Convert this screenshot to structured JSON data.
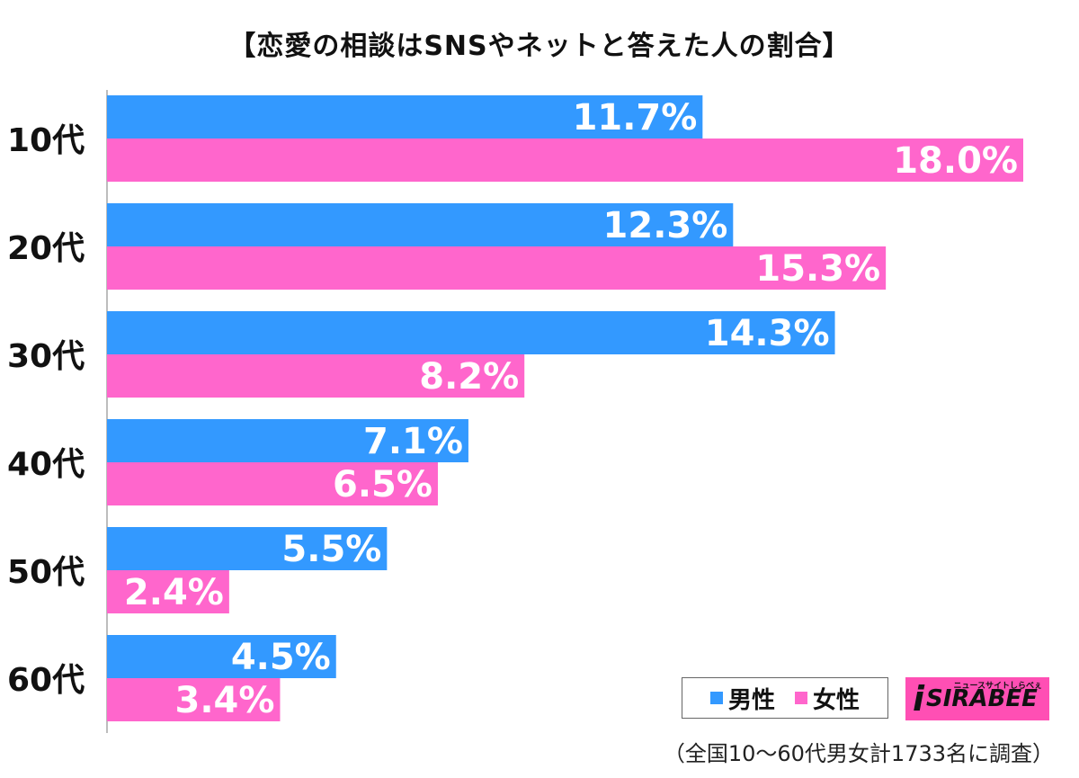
{
  "chart_data": {
    "type": "bar",
    "orientation": "horizontal",
    "title": "【恋愛の相談はSNSやネットと答えた人の割合】",
    "categories": [
      "10代",
      "20代",
      "30代",
      "40代",
      "50代",
      "60代"
    ],
    "series": [
      {
        "name": "男性",
        "color": "#3399ff",
        "values": [
          11.7,
          12.3,
          14.3,
          7.1,
          5.5,
          4.5
        ],
        "labels": [
          "11.7%",
          "12.3%",
          "14.3%",
          "7.1%",
          "5.5%",
          "4.5%"
        ]
      },
      {
        "name": "女性",
        "color": "#ff66cc",
        "values": [
          18.0,
          15.3,
          8.2,
          6.5,
          2.4,
          3.4
        ],
        "labels": [
          "18.0%",
          "15.3%",
          "8.2%",
          "6.5%",
          "2.4%",
          "3.4%"
        ]
      }
    ],
    "xlim": [
      0,
      18.0
    ],
    "grid": false,
    "legend_position": "bottom-right"
  },
  "legend": {
    "male": "男性",
    "female": "女性"
  },
  "logo": {
    "text": "SIRABEE",
    "tagline": "ニュースサイトしらべぇ",
    "glyph": "i",
    "color": "#ff4fb4"
  },
  "footnote": "（全国10～60代男女計1733名に調査）"
}
